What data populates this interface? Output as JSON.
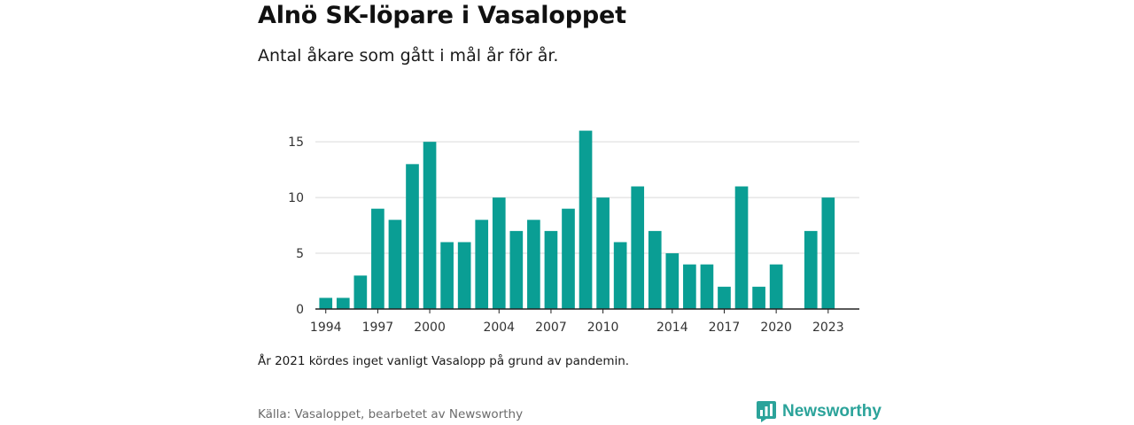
{
  "header": {
    "title": "Alnö SK-löpare i Vasaloppet",
    "subtitle": "Antal åkare som gått i mål år för år."
  },
  "footer": {
    "note": "År 2021 kördes inget vanligt Vasalopp på grund av pandemin.",
    "source": "Källa: Vasaloppet, bearbetet av Newsworthy",
    "brand": "Newsworthy",
    "brand_icon": "bar-chart-speech-bubble-icon"
  },
  "colors": {
    "bar": "#0a9e94",
    "grid": "#d9d9d9",
    "axis": "#222222",
    "brand": "#2ba39a"
  },
  "chart_data": {
    "type": "bar",
    "x": [
      1994,
      1995,
      1996,
      1997,
      1998,
      1999,
      2000,
      2001,
      2002,
      2003,
      2004,
      2005,
      2006,
      2007,
      2008,
      2009,
      2010,
      2011,
      2012,
      2013,
      2014,
      2015,
      2016,
      2017,
      2018,
      2019,
      2020,
      2021,
      2022,
      2023
    ],
    "values": [
      1,
      1,
      3,
      9,
      8,
      13,
      15,
      6,
      6,
      8,
      10,
      7,
      8,
      7,
      9,
      16,
      10,
      6,
      11,
      7,
      5,
      4,
      4,
      2,
      11,
      2,
      4,
      null,
      7,
      10
    ],
    "xticks": [
      1994,
      1997,
      2000,
      2004,
      2007,
      2010,
      2014,
      2017,
      2020,
      2023
    ],
    "yticks": [
      0,
      5,
      10,
      15
    ],
    "ylim": [
      0,
      17
    ],
    "grid": true,
    "xlabel": "",
    "ylabel": ""
  }
}
